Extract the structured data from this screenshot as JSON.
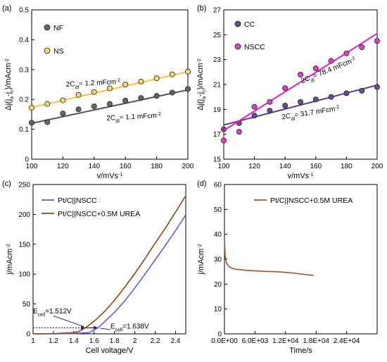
{
  "chart_data": [
    {
      "panel_label": "(a)",
      "type": "scatter",
      "xlabel": "v/mVs",
      "xlabel_sup": "-1",
      "ylabel_parts": [
        "Δj(j",
        "a",
        "-j",
        "c",
        ")/mAcm",
        "-2"
      ],
      "xlim": [
        100,
        200
      ],
      "ylim": [
        0,
        0.5
      ],
      "xticks": [
        "100",
        "120",
        "140",
        "160",
        "180",
        "200"
      ],
      "yticks": [
        "0",
        "0.1",
        "0.2",
        "0.3",
        "0.4",
        "0.5"
      ],
      "series": [
        {
          "name": "NF",
          "color": "#666666",
          "fit_color": "#555555",
          "x": [
            100,
            110,
            120,
            130,
            140,
            150,
            160,
            170,
            180,
            190,
            200
          ],
          "y": [
            0.122,
            0.124,
            0.153,
            0.167,
            0.177,
            0.185,
            0.196,
            0.205,
            0.212,
            0.223,
            0.235
          ],
          "fit": [
            0.12,
            0.232
          ]
        },
        {
          "name": "NS",
          "color": "#f5d76e",
          "fit_color": "#f5c242",
          "x": [
            100,
            110,
            120,
            130,
            140,
            150,
            160,
            170,
            180,
            190,
            200
          ],
          "y": [
            0.172,
            0.185,
            0.197,
            0.215,
            0.225,
            0.237,
            0.25,
            0.26,
            0.271,
            0.284,
            0.293
          ],
          "fit": [
            0.173,
            0.293
          ]
        }
      ],
      "annotations": [
        {
          "text": [
            "2C",
            "dl",
            "= 1.2 mFcm",
            "-2"
          ],
          "x": 122,
          "y": 0.243
        },
        {
          "text": [
            "2C",
            "dl",
            "= 1.1 mFcm",
            "-2"
          ],
          "x": 148,
          "y": 0.13
        }
      ]
    },
    {
      "panel_label": "(b)",
      "type": "scatter",
      "xlabel": "v/mVs",
      "xlabel_sup": "-1",
      "ylabel_parts": [
        "Δj(j",
        "a",
        "-j",
        "c",
        ")/mAcm",
        "-2"
      ],
      "xlim": [
        100,
        200
      ],
      "ylim": [
        15,
        27
      ],
      "xticks": [
        "100",
        "120",
        "140",
        "160",
        "180",
        "200"
      ],
      "yticks": [
        "15",
        "17",
        "19",
        "21",
        "23",
        "25",
        "27"
      ],
      "series": [
        {
          "name": "CC",
          "color": "#6a4c93",
          "fit_color": "#5b3f8a",
          "x": [
            100,
            110,
            120,
            130,
            140,
            150,
            160,
            170,
            180,
            190,
            200
          ],
          "y": [
            17.4,
            17.9,
            18.5,
            18.9,
            19.3,
            19.6,
            19.8,
            20.0,
            20.3,
            20.5,
            20.8
          ],
          "fit": [
            17.75,
            20.95
          ]
        },
        {
          "name": "NSCC",
          "color": "#e040c8",
          "fit_color": "#e020c0",
          "x": [
            100,
            110,
            120,
            130,
            140,
            150,
            160,
            170,
            180,
            190,
            200
          ],
          "y": [
            16.5,
            17.2,
            19.2,
            19.6,
            20.7,
            21.8,
            22.3,
            22.9,
            23.5,
            24.0,
            24.5
          ],
          "fit": [
            17.3,
            25.1
          ]
        }
      ],
      "annotations": [
        {
          "text": [
            "2C",
            "dl",
            "= 78.4 mFcm",
            "-2"
          ],
          "x": 151,
          "y": 21.1,
          "rotate": -22
        },
        {
          "text": [
            "2C",
            "dl",
            "= 31.7 mFcm",
            "-2"
          ],
          "x": 138,
          "y": 18.2,
          "rotate": -9
        }
      ]
    },
    {
      "panel_label": "(c)",
      "type": "line",
      "xlabel": "Cell voltage/V",
      "ylabel_parts": [
        "j/mAcm",
        "-2"
      ],
      "xlim": [
        1,
        2.5
      ],
      "ylim": [
        0,
        250
      ],
      "xticks": [
        "1",
        "1.2",
        "1.4",
        "1.6",
        "1.8",
        "2",
        "2.2",
        "2.4"
      ],
      "yticks": [
        "0",
        "50",
        "100",
        "150",
        "200",
        "250"
      ],
      "series": [
        {
          "name": "Pt/C||NSCC",
          "color": "#6a5acd",
          "x": [
            1.0,
            1.2,
            1.4,
            1.55,
            1.638,
            1.7,
            1.8,
            1.9,
            2.0,
            2.1,
            2.2,
            2.3,
            2.4,
            2.5
          ],
          "y": [
            0,
            0,
            0.5,
            2,
            10,
            20,
            36,
            55,
            77,
            100,
            124,
            148,
            173,
            199
          ]
        },
        {
          "name": "Pt/C||NSCC+0.5M UREA",
          "color": "#8b4513",
          "x": [
            1.0,
            1.2,
            1.4,
            1.45,
            1.512,
            1.6,
            1.7,
            1.8,
            1.9,
            2.0,
            2.1,
            2.2,
            2.3,
            2.4,
            2.5
          ],
          "y": [
            0,
            0.3,
            2,
            4,
            10,
            21,
            37,
            56,
            78,
            101,
            126,
            152,
            177,
            204,
            231
          ]
        }
      ],
      "annotations": [
        {
          "text": [
            "E",
            "cell",
            "=1.512V"
          ],
          "x": 1.0,
          "y": 34
        },
        {
          "text": [
            "E",
            "cell",
            "=1.638V"
          ],
          "x": 1.76,
          "y": 9
        }
      ],
      "marker_lines": [
        {
          "x1": 1.0,
          "x2": 1.512,
          "y": 10,
          "color": "#1a237e"
        },
        {
          "x1": 1.512,
          "x2": 1.638,
          "y": 10,
          "color": "#1a237e"
        }
      ]
    },
    {
      "panel_label": "(d)",
      "type": "line",
      "xlabel": "Time/s",
      "ylabel_parts": [
        "j/mAcm",
        "-2"
      ],
      "xlim": [
        0,
        30000
      ],
      "ylim": [
        0,
        60
      ],
      "xticks": [
        "0.0E+00",
        "6.0E+03",
        "1.2E+04",
        "1.8E+04",
        "2.4E+04"
      ],
      "yticks": [
        "0",
        "10",
        "20",
        "30",
        "40",
        "50",
        "60"
      ],
      "series": [
        {
          "name": "Pt/C||NSCC+0.5M UREA",
          "color": "#a0522d",
          "x": [
            0,
            150,
            400,
            800,
            1300,
            2000,
            3000,
            4500,
            6000,
            8000,
            10000,
            12000,
            14000,
            16000,
            17500
          ],
          "y": [
            38,
            31,
            28.5,
            27.2,
            26.5,
            26.0,
            25.8,
            25.5,
            25.3,
            25.1,
            25.0,
            24.7,
            24.3,
            23.8,
            23.5
          ]
        }
      ]
    }
  ]
}
